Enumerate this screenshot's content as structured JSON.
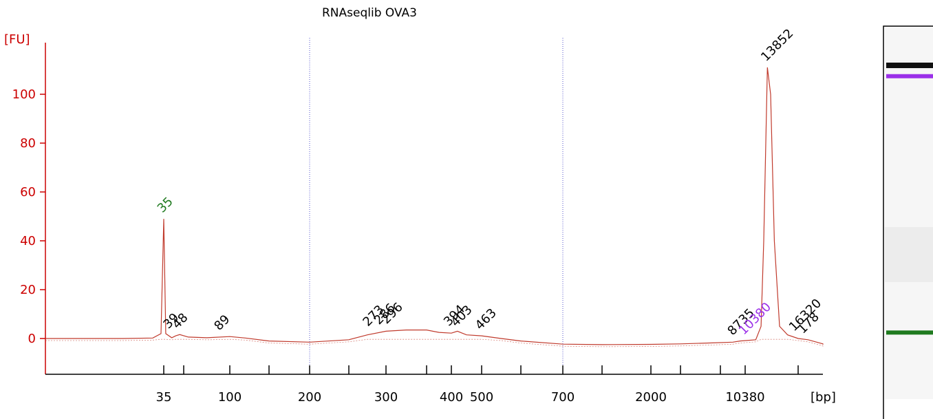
{
  "chart_data": {
    "type": "line",
    "title": "RNAseqlib OVA3",
    "ylabel": "[FU]",
    "xlabel": "[bp]",
    "ylim": [
      -14,
      120
    ],
    "yticks": [
      {
        "value": 100,
        "label": "100"
      },
      {
        "value": 80,
        "label": "80"
      },
      {
        "value": 60,
        "label": "60"
      },
      {
        "value": 40,
        "label": "40"
      },
      {
        "value": 20,
        "label": "20"
      },
      {
        "value": 0,
        "label": "0"
      }
    ],
    "xticks": [
      {
        "label": "35"
      },
      {
        "label": ""
      },
      {
        "label": "100"
      },
      {
        "label": ""
      },
      {
        "label": "200"
      },
      {
        "label": ""
      },
      {
        "label": "300"
      },
      {
        "label": ""
      },
      {
        "label": "400"
      },
      {
        "label": "500"
      },
      {
        "label": ""
      },
      {
        "label": "700"
      },
      {
        "label": ""
      },
      {
        "label": "2000"
      },
      {
        "label": ""
      },
      {
        "label": ""
      },
      {
        "label": "10380"
      },
      {
        "label": ""
      }
    ],
    "xlim_index": [
      -4.3,
      18.2
    ],
    "x_index_of_label": {
      "35": 0,
      "100": 2,
      "200": 4,
      "300": 6,
      "400": 8,
      "500": 9,
      "700": 11,
      "2000": 13,
      "10380": 16
    },
    "series": [
      {
        "color": "#c0392b",
        "x_index": [
          -4.3,
          -1.5,
          -0.4,
          -0.1,
          0.0,
          0.1,
          0.4,
          0.6,
          0.8,
          1.1,
          1.5,
          2.0,
          2.4,
          3.0,
          4.0,
          5.0,
          5.5,
          6.0,
          6.5,
          7.0,
          7.5,
          8.0,
          8.2,
          8.5,
          9.0,
          9.5,
          10.0,
          11.0,
          12.0,
          13.0,
          14.0,
          14.8,
          15.5,
          15.8,
          16.2,
          16.3,
          16.35,
          16.42,
          16.48,
          16.55,
          16.65,
          16.8,
          17.0,
          17.4,
          18.0,
          18.2
        ],
        "y": [
          0,
          0,
          0.2,
          2,
          49,
          2,
          0.3,
          1.1,
          1.6,
          0.6,
          0.3,
          0.8,
          0.2,
          -1,
          -1.5,
          -0.5,
          1.5,
          3,
          3.5,
          3.5,
          2.5,
          2.2,
          3,
          1.5,
          1.1,
          0,
          -1,
          -2.3,
          -2.5,
          -2.4,
          -2.2,
          -1.8,
          -1.5,
          -1,
          -0.5,
          5,
          40,
          111,
          100,
          40,
          5,
          1.5,
          0,
          -0.5,
          -2.2,
          -2.5
        ]
      }
    ],
    "peaks": [
      {
        "label": "35",
        "color": "#1f7a1f",
        "x_index": 0.0,
        "y": 49
      },
      {
        "label": "39",
        "color": "#000000",
        "x_index": 0.3,
        "y": 1.5
      },
      {
        "label": "48",
        "color": "#000000",
        "x_index": 0.75,
        "y": 1.5
      },
      {
        "label": "89",
        "color": "#000000",
        "x_index": 1.8,
        "y": 0.8
      },
      {
        "label": "273",
        "color": "#000000",
        "x_index": 5.55,
        "y": 2.5
      },
      {
        "label": "286",
        "color": "#000000",
        "x_index": 5.85,
        "y": 3.2
      },
      {
        "label": "296",
        "color": "#000000",
        "x_index": 6.05,
        "y": 3.5
      },
      {
        "label": "394",
        "color": "#000000",
        "x_index": 7.95,
        "y": 2.6
      },
      {
        "label": "403",
        "color": "#000000",
        "x_index": 8.2,
        "y": 2.4
      },
      {
        "label": "463",
        "color": "#000000",
        "x_index": 9.0,
        "y": 1.1
      },
      {
        "label": "8735",
        "color": "#000000",
        "x_index": 15.55,
        "y": -1.2
      },
      {
        "label": "10380",
        "color": "#9b30e8",
        "x_index": 16.0,
        "y": -1.0
      },
      {
        "label": "13852",
        "color": "#000000",
        "x_index": 16.42,
        "y": 111
      },
      {
        "label": "16320",
        "color": "#000000",
        "x_index": 16.95,
        "y": 0.5
      },
      {
        "label": "178",
        "color": "#000000",
        "x_index": 17.25,
        "y": -0.5
      }
    ],
    "grid": false,
    "legend": "none"
  },
  "gel": {
    "bands": [
      {
        "name": "upper-marker",
        "color": "#111111",
        "level": 0.1
      },
      {
        "name": "purple-marker",
        "color": "#9b30e8",
        "level": 0.131
      },
      {
        "name": "lower-marker",
        "color": "#1f7a1f",
        "level": 0.821
      }
    ]
  }
}
